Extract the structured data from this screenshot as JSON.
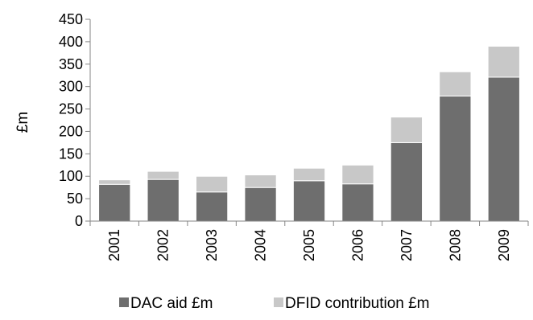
{
  "chart_data": {
    "type": "bar",
    "stacked": true,
    "categories": [
      "2001",
      "2002",
      "2003",
      "2004",
      "2005",
      "2006",
      "2007",
      "2008",
      "2009"
    ],
    "series": [
      {
        "name": "DAC aid £m",
        "values": [
          82,
          93,
          65,
          75,
          90,
          83,
          175,
          279,
          321
        ],
        "color": "#6e6e6e"
      },
      {
        "name": "DFID contribution £m",
        "values": [
          10,
          18,
          35,
          28,
          28,
          42,
          57,
          54,
          69
        ],
        "color": "#c8c8c8"
      }
    ],
    "ylabel": "£m",
    "ylim": [
      0,
      450
    ],
    "yticks": [
      "0",
      "50",
      "100",
      "150",
      "200",
      "250",
      "300",
      "350",
      "400",
      "450"
    ],
    "grid": false,
    "legend_position": "bottom"
  }
}
